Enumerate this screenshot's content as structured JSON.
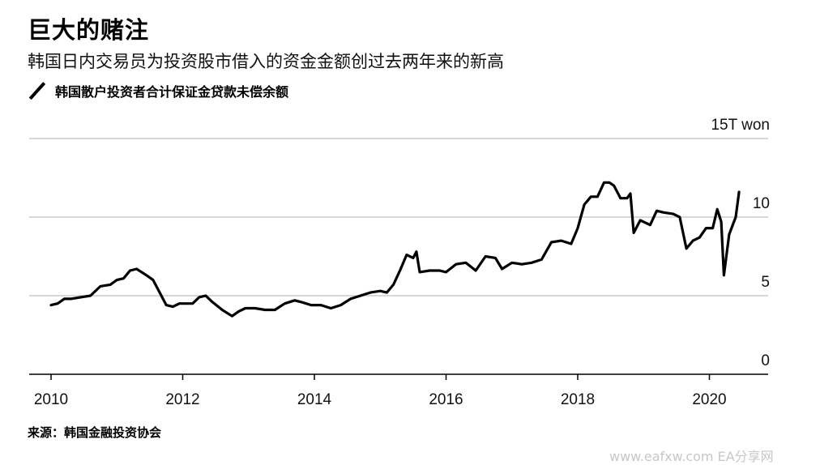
{
  "title": "巨大的赌注",
  "subtitle": "韩国日内交易员为投资股市借入的资金金额创过去两年来的新高",
  "legend": {
    "label": "韩国散户投资者合计保证金贷款未偿余额"
  },
  "source": "来源：韩国金融投资协会",
  "watermark": "www.eafxw.com  EA分享网",
  "colors": {
    "line": "#000000",
    "grid": "#cccccc",
    "axis": "#000000"
  },
  "chart_data": {
    "type": "line",
    "title": "巨大的赌注",
    "subtitle": "韩国日内交易员为投资股市借入的资金金额创过去两年来的新高",
    "ylabel": "",
    "ylim": [
      0,
      15
    ],
    "yticks": [
      {
        "value": 0,
        "label": "0"
      },
      {
        "value": 5,
        "label": "5"
      },
      {
        "value": 10,
        "label": "10"
      },
      {
        "value": 15,
        "label": "15T won"
      }
    ],
    "xlim": [
      2010,
      2021.05
    ],
    "xticks": [
      {
        "value": 2010,
        "label": "2010"
      },
      {
        "value": 2012,
        "label": "2012"
      },
      {
        "value": 2014,
        "label": "2014"
      },
      {
        "value": 2016,
        "label": "2016"
      },
      {
        "value": 2018,
        "label": "2018"
      },
      {
        "value": 2020,
        "label": "2020"
      }
    ],
    "grid": true,
    "series": [
      {
        "name": "韩国散户投资者合计保证金贷款未偿余额",
        "x": [
          2010.0,
          2010.1,
          2010.2,
          2010.3,
          2010.45,
          2010.6,
          2010.75,
          2010.9,
          2011.0,
          2011.1,
          2011.2,
          2011.3,
          2011.45,
          2011.55,
          2011.65,
          2011.75,
          2011.85,
          2011.95,
          2012.05,
          2012.15,
          2012.25,
          2012.35,
          2012.45,
          2012.6,
          2012.75,
          2012.85,
          2012.95,
          2013.1,
          2013.25,
          2013.4,
          2013.55,
          2013.7,
          2013.8,
          2013.95,
          2014.1,
          2014.25,
          2014.4,
          2014.55,
          2014.7,
          2014.85,
          2015.0,
          2015.1,
          2015.2,
          2015.3,
          2015.4,
          2015.5,
          2015.55,
          2015.6,
          2015.75,
          2015.9,
          2016.0,
          2016.15,
          2016.3,
          2016.45,
          2016.6,
          2016.75,
          2016.85,
          2017.0,
          2017.15,
          2017.3,
          2017.45,
          2017.6,
          2017.75,
          2017.9,
          2018.0,
          2018.1,
          2018.2,
          2018.3,
          2018.4,
          2018.48,
          2018.55,
          2018.65,
          2018.75,
          2018.8,
          2018.85,
          2018.95,
          2019.1,
          2019.2,
          2019.3,
          2019.45,
          2019.55,
          2019.65,
          2019.75,
          2019.85,
          2019.95,
          2020.05,
          2020.12,
          2020.18,
          2020.22,
          2020.3,
          2020.4,
          2020.45
        ],
        "y": [
          4.4,
          4.5,
          4.8,
          4.8,
          4.9,
          5.0,
          5.6,
          5.7,
          6.0,
          6.1,
          6.6,
          6.7,
          6.3,
          6.0,
          5.2,
          4.4,
          4.3,
          4.5,
          4.5,
          4.5,
          4.9,
          5.0,
          4.6,
          4.1,
          3.7,
          4.0,
          4.2,
          4.2,
          4.1,
          4.1,
          4.5,
          4.7,
          4.6,
          4.4,
          4.4,
          4.2,
          4.4,
          4.8,
          5.0,
          5.2,
          5.3,
          5.2,
          5.7,
          6.6,
          7.6,
          7.4,
          7.8,
          6.5,
          6.6,
          6.6,
          6.5,
          7.0,
          7.1,
          6.6,
          7.5,
          7.4,
          6.7,
          7.1,
          7.0,
          7.1,
          7.3,
          8.4,
          8.5,
          8.3,
          9.3,
          10.8,
          11.3,
          11.3,
          12.2,
          12.2,
          12.0,
          11.2,
          11.2,
          11.5,
          9.0,
          9.8,
          9.5,
          10.4,
          10.3,
          10.2,
          10.0,
          8.0,
          8.5,
          8.7,
          9.3,
          9.3,
          10.5,
          9.7,
          6.3,
          8.9,
          10.0,
          11.6
        ]
      }
    ]
  }
}
